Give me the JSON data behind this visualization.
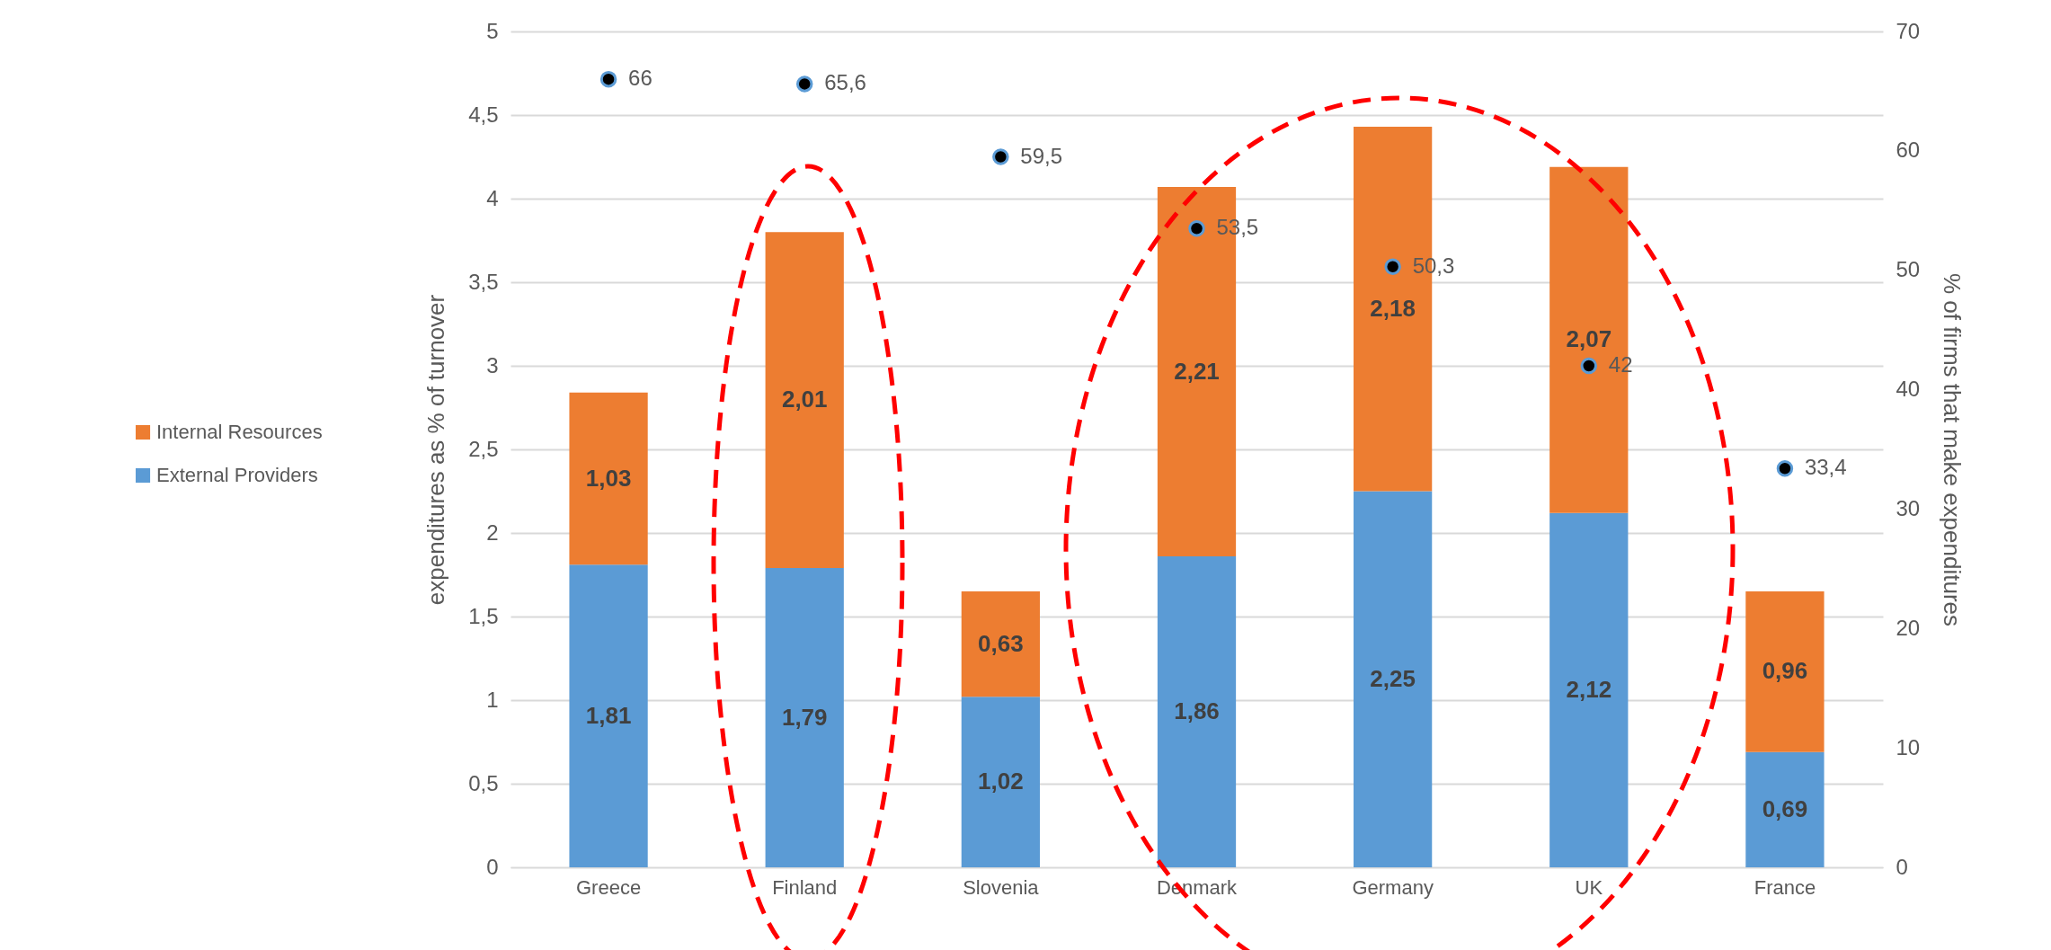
{
  "chart_data": {
    "type": "bar",
    "stacked": true,
    "ylabel": "expenditures as % of turnover",
    "y2label": "% of firms that make expenditures",
    "categories": [
      "Greece",
      "Finland",
      "Slovenia",
      "Denmark",
      "Germany",
      "UK",
      "France"
    ],
    "series": [
      {
        "name": "External Providers",
        "color": "#5b9bd5",
        "values": [
          1.81,
          1.79,
          1.02,
          1.86,
          2.25,
          2.12,
          0.69
        ],
        "value_labels": [
          "1,81",
          "1,79",
          "1,02",
          "1,86",
          "2,25",
          "2,12",
          "0,69"
        ]
      },
      {
        "name": "Internal Resources",
        "color": "#ed7d31",
        "values": [
          1.03,
          2.01,
          0.63,
          2.21,
          2.18,
          2.07,
          0.96
        ],
        "value_labels": [
          "1,03",
          "2,01",
          "0,63",
          "2,21",
          "2,18",
          "2,07",
          "0,96"
        ]
      },
      {
        "type": "scatter",
        "axis": "y2",
        "color": "#000000",
        "values": [
          66,
          65.6,
          59.5,
          53.5,
          50.3,
          42,
          33.4
        ],
        "value_labels": [
          "66",
          "65,6",
          "59,5",
          "53,5",
          "50,3",
          "42",
          "33,4"
        ]
      }
    ],
    "ylim": [
      0,
      5
    ],
    "yticks": [
      0,
      {
        "value": 0.5,
        "label": "0,5"
      },
      1,
      {
        "value": 1.5,
        "label": "1,5"
      },
      2,
      {
        "value": 2.5,
        "label": "2,5"
      },
      3,
      {
        "value": 3.5,
        "label": "3,5"
      },
      4,
      {
        "value": 4.5,
        "label": "4,5"
      },
      5
    ],
    "y2lim": [
      0,
      70
    ],
    "y2ticks": [
      0,
      10,
      20,
      30,
      40,
      50,
      60,
      70
    ],
    "grid": "y",
    "legend": "left",
    "marker": "circle"
  }
}
